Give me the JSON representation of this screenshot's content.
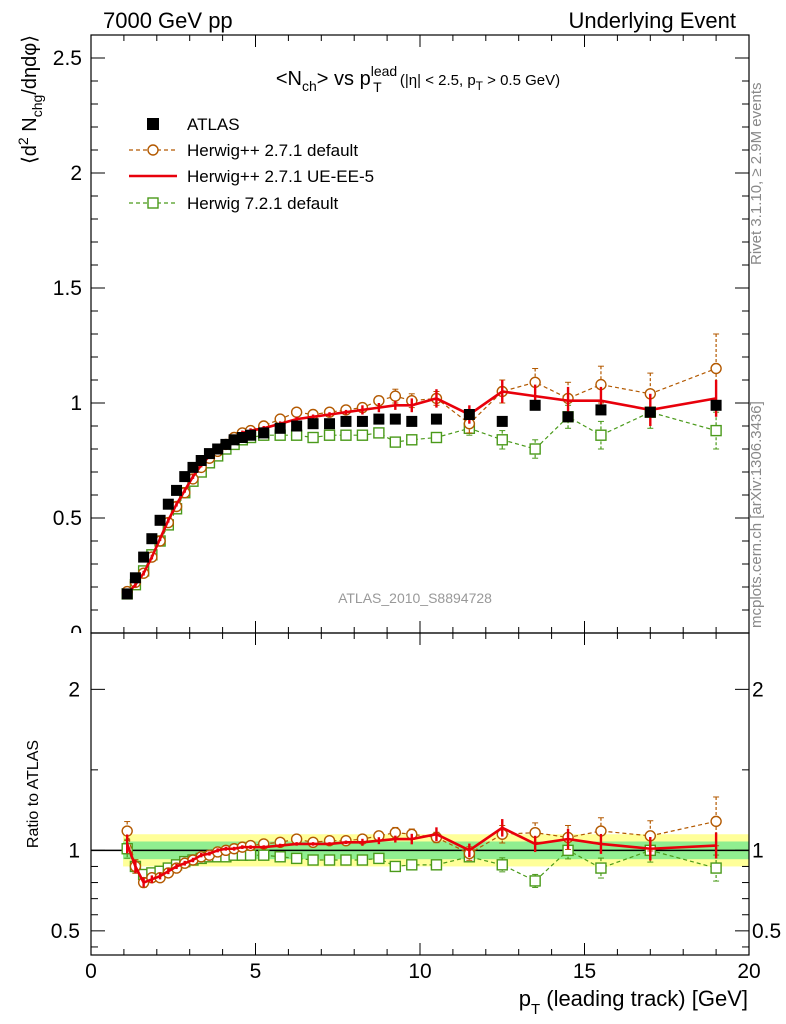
{
  "header": {
    "left": "7000 GeV pp",
    "right": "Underlying Event"
  },
  "side_labels": {
    "top": "Rivet 3.1.10, ≥ 2.9M events",
    "bottom": "mcplots.cern.ch [arXiv:1306.3436]"
  },
  "chart_data": [
    {
      "type": "scatter",
      "title": "<N_ch> vs p_T^lead (|η| < 2.5, p_T > 0.5 GeV)",
      "watermark": "ATLAS_2010_S8894728",
      "ylabel": "⟨d² N_chg/dηdφ⟩",
      "xlim": [
        0,
        20
      ],
      "ylim": [
        0,
        2.6
      ],
      "yticks": [
        "0.5",
        "1",
        "1.5",
        "2",
        "2.5"
      ],
      "legend_position": "top-left",
      "legend": [
        "ATLAS",
        "Herwig++ 2.7.1 default",
        "Herwig++ 2.7.1 UE-EE-5",
        "Herwig 7.2.1 default"
      ],
      "x": [
        1.1,
        1.35,
        1.6,
        1.85,
        2.1,
        2.35,
        2.6,
        2.85,
        3.1,
        3.35,
        3.6,
        3.85,
        4.1,
        4.35,
        4.6,
        4.85,
        5.25,
        5.75,
        6.25,
        6.75,
        7.25,
        7.75,
        8.25,
        8.75,
        9.25,
        9.75,
        10.5,
        11.5,
        12.5,
        13.5,
        14.5,
        15.5,
        17,
        19
      ],
      "series": [
        {
          "name": "ATLAS",
          "color": "#000000",
          "values": [
            0.17,
            0.24,
            0.33,
            0.41,
            0.49,
            0.56,
            0.62,
            0.68,
            0.72,
            0.75,
            0.78,
            0.8,
            0.82,
            0.84,
            0.85,
            0.86,
            0.87,
            0.89,
            0.9,
            0.91,
            0.91,
            0.92,
            0.92,
            0.93,
            0.93,
            0.92,
            0.93,
            0.95,
            0.92,
            0.99,
            0.94,
            0.97,
            0.96,
            0.99
          ]
        },
        {
          "name": "Herwig++ 2.7.1 default",
          "color": "#b35900",
          "values": [
            0.18,
            0.22,
            0.26,
            0.33,
            0.4,
            0.48,
            0.55,
            0.61,
            0.67,
            0.72,
            0.76,
            0.79,
            0.82,
            0.85,
            0.87,
            0.88,
            0.9,
            0.93,
            0.96,
            0.95,
            0.96,
            0.97,
            0.98,
            1.01,
            1.03,
            1.01,
            1.02,
            0.91,
            1.05,
            1.09,
            1.02,
            1.08,
            1.04,
            1.15
          ],
          "errors": [
            0.01,
            0.01,
            0.01,
            0.01,
            0.01,
            0.01,
            0.01,
            0.01,
            0.01,
            0.01,
            0.01,
            0.01,
            0.01,
            0.01,
            0.01,
            0.01,
            0.01,
            0.01,
            0.01,
            0.01,
            0.01,
            0.01,
            0.02,
            0.02,
            0.03,
            0.03,
            0.03,
            0.04,
            0.05,
            0.06,
            0.07,
            0.08,
            0.09,
            0.15
          ]
        },
        {
          "name": "Herwig++ 2.7.1 UE-EE-5",
          "color": "#e8000b",
          "values": [
            0.17,
            0.21,
            0.26,
            0.33,
            0.41,
            0.49,
            0.56,
            0.62,
            0.68,
            0.73,
            0.77,
            0.8,
            0.83,
            0.85,
            0.87,
            0.88,
            0.89,
            0.91,
            0.93,
            0.94,
            0.95,
            0.96,
            0.97,
            0.98,
            0.99,
            0.99,
            1.02,
            0.95,
            1.05,
            1.03,
            1.01,
            1.01,
            0.97,
            1.02
          ],
          "errors": [
            0.01,
            0.01,
            0.01,
            0.01,
            0.01,
            0.01,
            0.01,
            0.01,
            0.01,
            0.01,
            0.01,
            0.01,
            0.01,
            0.01,
            0.01,
            0.01,
            0.01,
            0.01,
            0.01,
            0.01,
            0.01,
            0.01,
            0.02,
            0.02,
            0.02,
            0.03,
            0.04,
            0.04,
            0.05,
            0.05,
            0.06,
            0.06,
            0.07,
            0.08
          ]
        },
        {
          "name": "Herwig 7.2.1 default",
          "color": "#4a9a1a",
          "values": [
            0.17,
            0.21,
            0.27,
            0.34,
            0.4,
            0.47,
            0.54,
            0.61,
            0.66,
            0.7,
            0.74,
            0.77,
            0.8,
            0.82,
            0.84,
            0.85,
            0.86,
            0.86,
            0.86,
            0.85,
            0.86,
            0.86,
            0.86,
            0.87,
            0.83,
            0.84,
            0.85,
            0.89,
            0.84,
            0.8,
            0.94,
            0.86,
            0.96,
            0.88
          ],
          "errors": [
            0.01,
            0.01,
            0.01,
            0.01,
            0.01,
            0.01,
            0.01,
            0.01,
            0.01,
            0.01,
            0.01,
            0.01,
            0.01,
            0.01,
            0.01,
            0.01,
            0.01,
            0.01,
            0.01,
            0.01,
            0.01,
            0.01,
            0.02,
            0.02,
            0.02,
            0.02,
            0.02,
            0.03,
            0.04,
            0.04,
            0.05,
            0.06,
            0.07,
            0.08
          ]
        }
      ]
    },
    {
      "type": "scatter",
      "ylabel": "Ratio to ATLAS",
      "xlabel": "p_T (leading track) [GeV]",
      "xlim": [
        0,
        20
      ],
      "ylim": [
        0.35,
        2.35
      ],
      "xticks": [
        "0",
        "5",
        "10",
        "15",
        "20"
      ],
      "yticks": [
        "0.5",
        "1",
        "2"
      ],
      "reference_line": 1,
      "bands": {
        "green": {
          "color": "#90ee90",
          "half_width": 0.055
        },
        "yellow": {
          "color": "#ffff99",
          "half_width": 0.1
        }
      },
      "series": [
        {
          "name": "Herwig++ 2.7.1 default",
          "color": "#b35900",
          "values": [
            1.12,
            0.9,
            0.8,
            0.83,
            0.83,
            0.86,
            0.89,
            0.92,
            0.94,
            0.96,
            0.97,
            0.99,
            1.0,
            1.01,
            1.02,
            1.03,
            1.04,
            1.05,
            1.07,
            1.05,
            1.06,
            1.06,
            1.07,
            1.09,
            1.11,
            1.1,
            1.08,
            0.98,
            1.1,
            1.11,
            1.08,
            1.12,
            1.09,
            1.18
          ]
        },
        {
          "name": "Herwig++ 2.7.1 UE-EE-5",
          "color": "#e8000b",
          "values": [
            1.04,
            0.9,
            0.8,
            0.82,
            0.84,
            0.87,
            0.9,
            0.92,
            0.94,
            0.97,
            0.98,
            1.0,
            1.01,
            1.01,
            1.02,
            1.02,
            1.02,
            1.03,
            1.04,
            1.04,
            1.04,
            1.05,
            1.05,
            1.06,
            1.07,
            1.07,
            1.1,
            1.0,
            1.14,
            1.04,
            1.07,
            1.04,
            1.01,
            1.03
          ]
        },
        {
          "name": "Herwig 7.2.1 default",
          "color": "#4a9a1a",
          "values": [
            1.01,
            0.9,
            0.85,
            0.86,
            0.87,
            0.89,
            0.91,
            0.93,
            0.94,
            0.95,
            0.96,
            0.96,
            0.96,
            0.97,
            0.97,
            0.97,
            0.97,
            0.96,
            0.95,
            0.94,
            0.94,
            0.94,
            0.94,
            0.95,
            0.9,
            0.91,
            0.91,
            0.96,
            0.91,
            0.81,
            1.0,
            0.89,
            1.0,
            0.89
          ]
        }
      ]
    }
  ]
}
